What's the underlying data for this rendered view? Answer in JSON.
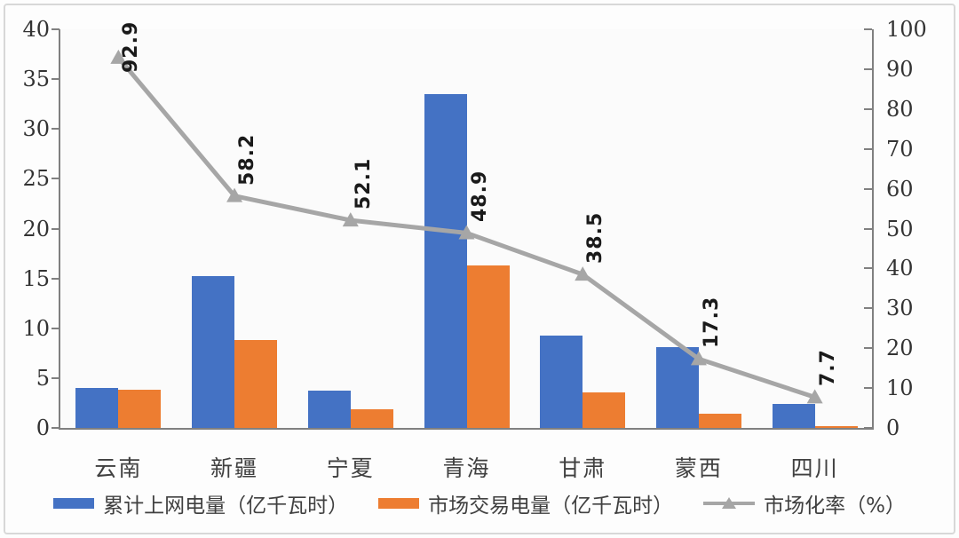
{
  "chart_data": {
    "type": "bar",
    "subtype": "grouped-bars-with-line",
    "categories": [
      "云南",
      "新疆",
      "宁夏",
      "青海",
      "甘肃",
      "蒙西",
      "四川"
    ],
    "series": [
      {
        "name": "累计上网电量（亿千瓦时）",
        "type": "bar",
        "axis": "left",
        "color": "#4472c4",
        "values": [
          4.0,
          15.2,
          3.7,
          33.5,
          9.3,
          8.1,
          2.4
        ]
      },
      {
        "name": "市场交易电量（亿千瓦时）",
        "type": "bar",
        "axis": "left",
        "color": "#ed7d31",
        "values": [
          3.8,
          8.8,
          1.9,
          16.3,
          3.6,
          1.4,
          0.2
        ]
      },
      {
        "name": "市场化率（%）",
        "type": "line",
        "axis": "right",
        "color": "#a6a6a6",
        "values": [
          92.9,
          58.2,
          52.1,
          48.9,
          38.5,
          17.3,
          7.7
        ],
        "point_labels": [
          "92.9",
          "58.2",
          "52.1",
          "48.9",
          "38.5",
          "17.3",
          "7.7"
        ]
      }
    ],
    "left_axis": {
      "min": 0,
      "max": 40,
      "step": 5,
      "ticks": [
        "0",
        "5",
        "10",
        "15",
        "20",
        "25",
        "30",
        "35",
        "40"
      ]
    },
    "right_axis": {
      "min": 0,
      "max": 100,
      "step": 10,
      "ticks": [
        "0",
        "10",
        "20",
        "30",
        "40",
        "50",
        "60",
        "70",
        "80",
        "90",
        "100"
      ]
    },
    "title": "",
    "xlabel": "",
    "ylabel": "",
    "grid": false,
    "legend_position": "bottom",
    "point_label_rotation_deg": -90
  },
  "colors": {
    "bar1": "#4472c4",
    "bar2": "#ed7d31",
    "line": "#a6a6a6",
    "axis": "#808080",
    "text": "#404040",
    "frame_border": "#d8d8d8"
  }
}
